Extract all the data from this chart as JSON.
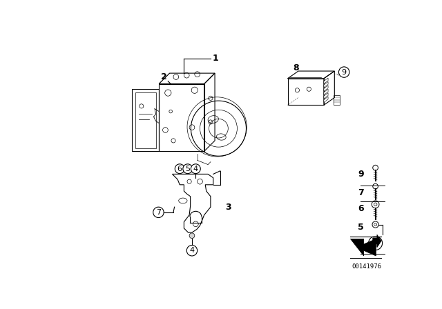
{
  "background_color": "#ffffff",
  "doc_number": "00141976",
  "fig_width": 6.4,
  "fig_height": 4.48,
  "dpi": 100,
  "lw": 0.8,
  "font_size": 8,
  "bold_font": 9
}
